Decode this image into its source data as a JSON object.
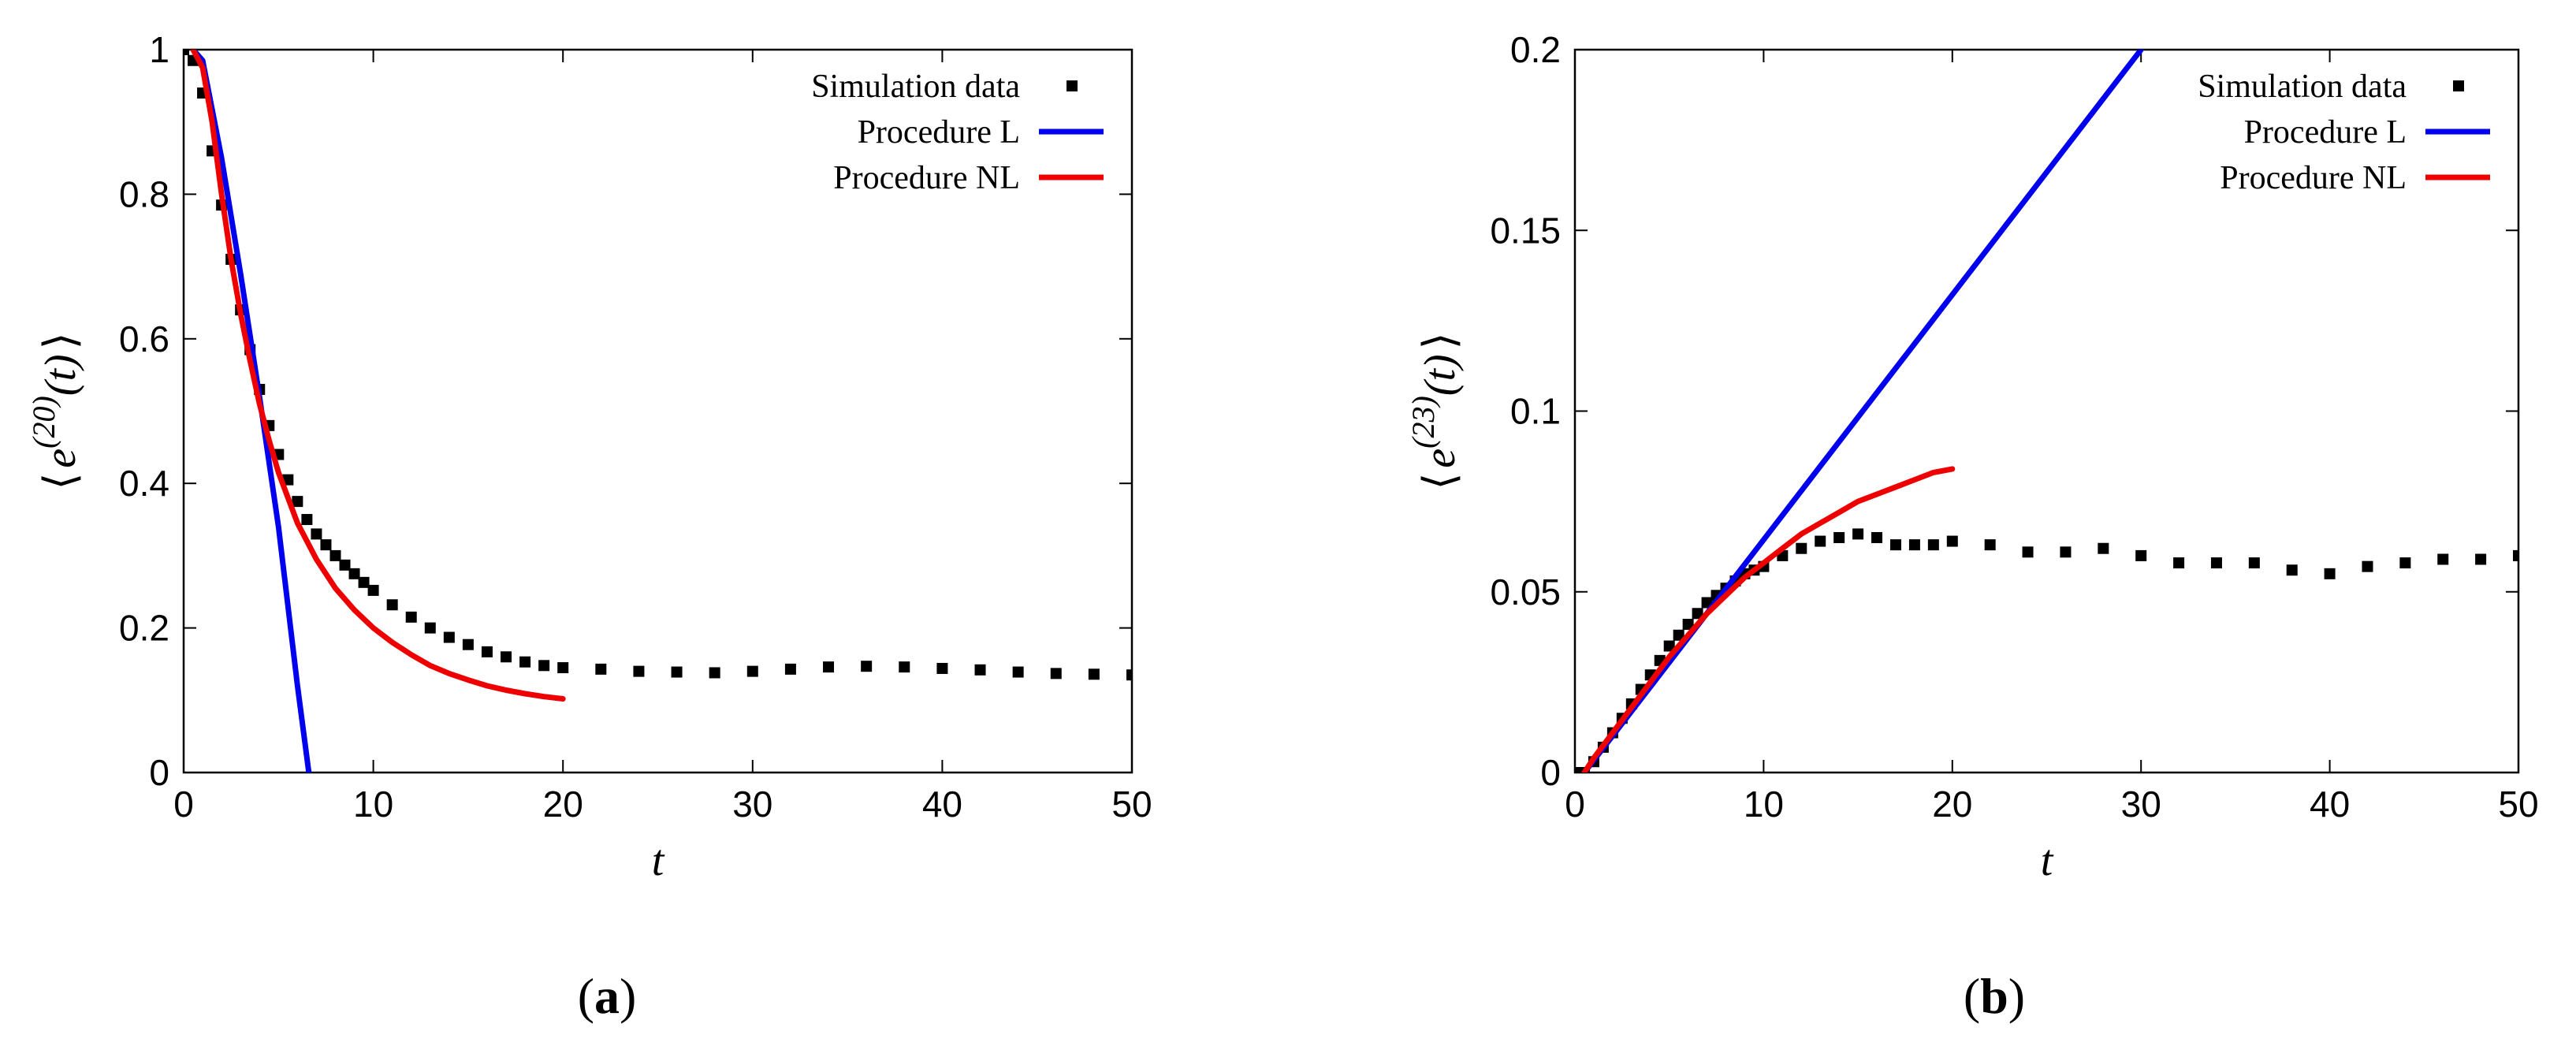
{
  "chart_data": [
    {
      "type": "line",
      "panel_label": "(a)",
      "panel_letter": "a",
      "xlabel": "t",
      "ylabel_parts": {
        "left": "⟨",
        "base": "e",
        "sup": "(20)",
        "arg": "(t)",
        "right": "⟩"
      },
      "xlim": [
        0,
        50
      ],
      "ylim": [
        0,
        1
      ],
      "xticks": [
        0,
        10,
        20,
        30,
        40,
        50
      ],
      "yticks": [
        0,
        0.2,
        0.4,
        0.6,
        0.8,
        1
      ],
      "ytick_labels": [
        "0",
        "0.2",
        "0.4",
        "0.6",
        "0.8",
        "1"
      ],
      "legend_position": "top-right",
      "series": [
        {
          "name": "Simulation data",
          "style": "markers",
          "color": "#000000",
          "x": [
            0,
            0.5,
            1,
            1.5,
            2,
            2.5,
            3,
            3.5,
            4,
            4.5,
            5,
            5.5,
            6,
            6.5,
            7,
            7.5,
            8,
            8.5,
            9,
            9.5,
            10,
            11,
            12,
            13,
            14,
            15,
            16,
            17,
            18,
            19,
            20,
            22,
            24,
            26,
            28,
            30,
            32,
            34,
            36,
            38,
            40,
            42,
            44,
            46,
            48,
            50
          ],
          "y": [
            1,
            0.985,
            0.94,
            0.86,
            0.785,
            0.71,
            0.64,
            0.585,
            0.53,
            0.48,
            0.44,
            0.405,
            0.375,
            0.35,
            0.33,
            0.315,
            0.3,
            0.287,
            0.275,
            0.263,
            0.252,
            0.232,
            0.215,
            0.2,
            0.187,
            0.177,
            0.167,
            0.16,
            0.153,
            0.148,
            0.145,
            0.143,
            0.14,
            0.139,
            0.138,
            0.14,
            0.143,
            0.146,
            0.147,
            0.146,
            0.144,
            0.142,
            0.139,
            0.137,
            0.136,
            0.135
          ]
        },
        {
          "name": "Procedure L",
          "style": "line",
          "color": "#0000ee",
          "x": [
            0.5,
            1,
            2,
            3,
            4,
            5,
            6,
            6.6
          ],
          "y": [
            1,
            0.985,
            0.85,
            0.69,
            0.52,
            0.34,
            0.12,
            0
          ]
        },
        {
          "name": "Procedure NL",
          "style": "line",
          "color": "#ee0000",
          "x": [
            0.5,
            1,
            1.5,
            2,
            2.5,
            3,
            3.5,
            4,
            4.5,
            5,
            6,
            7,
            8,
            9,
            10,
            11,
            12,
            13,
            14,
            15,
            16,
            17,
            18,
            19,
            20
          ],
          "y": [
            1,
            0.975,
            0.9,
            0.8,
            0.71,
            0.635,
            0.57,
            0.51,
            0.46,
            0.415,
            0.345,
            0.295,
            0.255,
            0.225,
            0.2,
            0.18,
            0.163,
            0.148,
            0.137,
            0.128,
            0.12,
            0.114,
            0.109,
            0.105,
            0.102
          ]
        }
      ]
    },
    {
      "type": "line",
      "panel_label": "(b)",
      "panel_letter": "b",
      "xlabel": "t",
      "ylabel_parts": {
        "left": "⟨",
        "base": "e",
        "sup": "(23)",
        "arg": "(t)",
        "right": "⟩"
      },
      "xlim": [
        0,
        50
      ],
      "ylim": [
        0,
        0.2
      ],
      "xticks": [
        0,
        10,
        20,
        30,
        40,
        50
      ],
      "yticks": [
        0,
        0.05,
        0.1,
        0.15,
        0.2
      ],
      "ytick_labels": [
        "0",
        "0.05",
        "0.1",
        "0.15",
        "0.2"
      ],
      "legend_position": "top-right",
      "series": [
        {
          "name": "Simulation data",
          "style": "markers",
          "color": "#000000",
          "x": [
            0,
            0.5,
            1,
            1.5,
            2,
            2.5,
            3,
            3.5,
            4,
            4.5,
            5,
            5.5,
            6,
            6.5,
            7,
            7.5,
            8,
            8.5,
            9,
            9.5,
            10,
            11,
            12,
            13,
            14,
            15,
            16,
            17,
            18,
            19,
            20,
            22,
            24,
            26,
            28,
            30,
            32,
            34,
            36,
            38,
            40,
            42,
            44,
            46,
            48,
            50
          ],
          "y": [
            0,
            0,
            0.003,
            0.007,
            0.011,
            0.015,
            0.019,
            0.023,
            0.027,
            0.031,
            0.035,
            0.038,
            0.041,
            0.044,
            0.047,
            0.049,
            0.051,
            0.053,
            0.055,
            0.056,
            0.057,
            0.06,
            0.062,
            0.064,
            0.065,
            0.066,
            0.065,
            0.063,
            0.063,
            0.063,
            0.064,
            0.063,
            0.061,
            0.061,
            0.062,
            0.06,
            0.058,
            0.058,
            0.058,
            0.056,
            0.055,
            0.057,
            0.058,
            0.059,
            0.059,
            0.06
          ]
        },
        {
          "name": "Procedure L",
          "style": "line",
          "color": "#0000ee",
          "x": [
            0.5,
            30
          ],
          "y": [
            0,
            0.2
          ]
        },
        {
          "name": "Procedure NL",
          "style": "line",
          "color": "#ee0000",
          "x": [
            0.5,
            1,
            2,
            3,
            4,
            5,
            6,
            7,
            8,
            9,
            10,
            11,
            12,
            13,
            14,
            15,
            16,
            17,
            18,
            19,
            20
          ],
          "y": [
            0,
            0.004,
            0.011,
            0.018,
            0.025,
            0.032,
            0.038,
            0.044,
            0.049,
            0.054,
            0.058,
            0.062,
            0.066,
            0.069,
            0.072,
            0.075,
            0.077,
            0.079,
            0.081,
            0.083,
            0.084
          ]
        }
      ]
    }
  ]
}
